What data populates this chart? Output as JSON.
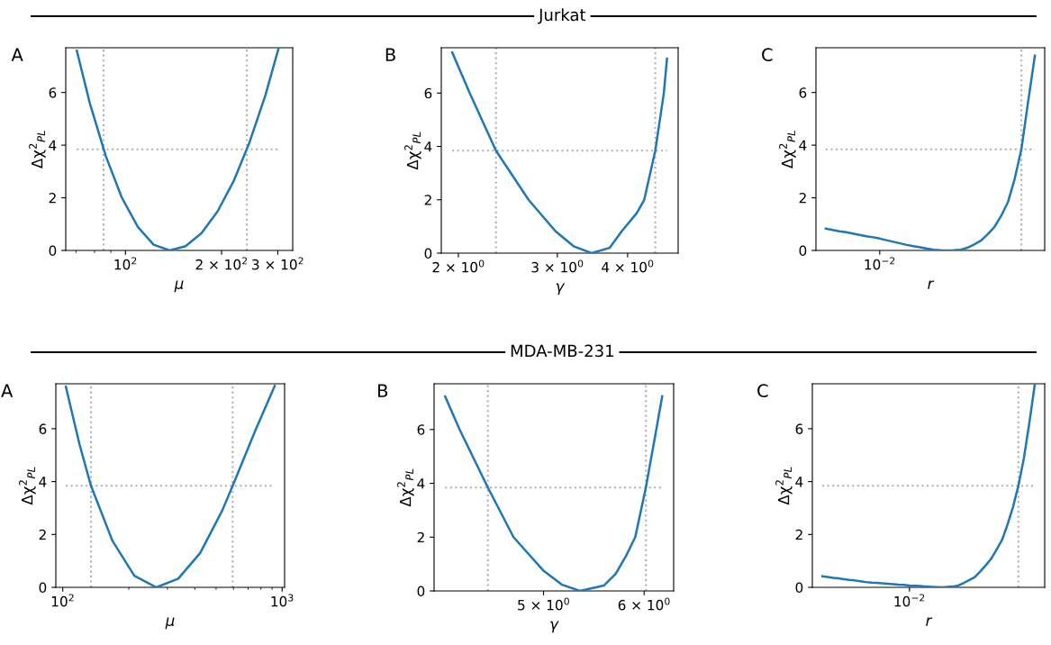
{
  "chart_data": [
    {
      "type": "line",
      "title": "A",
      "xlabel": "μ",
      "ylabel": "Δχ$^{2}$$_{PL}$",
      "log": "x",
      "color": "#1f77b4",
      "xlim": [
        65,
        334
      ],
      "ylim": [
        0,
        7.7
      ],
      "yticks": [
        0,
        2,
        4,
        6
      ],
      "xticks": [
        {
          "value": 70,
          "label": null
        },
        {
          "value": 80,
          "label": null
        },
        {
          "value": 90,
          "label": null
        },
        {
          "value": 100,
          "label": "10$^{2}$"
        },
        {
          "value": 200,
          "label": "2 × 10$^{2}$"
        },
        {
          "value": 300,
          "label": "3 × 10$^{2}$"
        }
      ],
      "x": [
        70.4,
        77.3,
        86.8,
        97.3,
        109.2,
        122.5,
        137.5,
        154.3,
        173.1,
        194.2,
        217.9,
        244.5,
        274.4,
        302
      ],
      "values": [
        7.59,
        5.6,
        3.58,
        2.02,
        0.9,
        0.22,
        0,
        0.16,
        0.66,
        1.48,
        2.62,
        4.1,
        5.9,
        7.7
      ],
      "ref_lines": [
        {
          "axis": "y",
          "value": 3.84,
          "color": "#b0b0b0",
          "line_style": "dotted"
        },
        {
          "axis": "x",
          "value": 85.4,
          "color": "#b0b0b0",
          "line_style": "dotted"
        },
        {
          "axis": "x",
          "value": 240,
          "color": "#b0b0b0",
          "line_style": "dotted"
        }
      ]
    },
    {
      "type": "line",
      "title": "B",
      "subtitle": "Jurkat",
      "xlabel": "γ",
      "ylabel": "Δχ$^{2}$$_{PL}$",
      "log": "x",
      "color": "#1f77b4",
      "xlim": [
        1.865,
        4.92
      ],
      "ylim": [
        0,
        7.7
      ],
      "yticks": [
        0,
        2,
        4,
        6
      ],
      "xticks": [
        {
          "value": 2,
          "label": "2 × 10$^{0}$"
        },
        {
          "value": 3,
          "label": "3 × 10$^{0}$"
        },
        {
          "value": 4,
          "label": "4 × 10$^{0}$"
        }
      ],
      "x": [
        1.95,
        2.095,
        2.333,
        2.666,
        2.978,
        3.206,
        3.45,
        3.718,
        3.904,
        4.152,
        4.282,
        4.48,
        4.64,
        4.7
      ],
      "values": [
        7.53,
        6.0,
        3.84,
        2.0,
        0.82,
        0.26,
        0,
        0.2,
        0.82,
        1.5,
        2.0,
        3.84,
        6.0,
        7.29
      ],
      "ref_lines": [
        {
          "axis": "y",
          "value": 3.84,
          "color": "#b0b0b0",
          "line_style": "dotted"
        },
        {
          "axis": "x",
          "value": 2.333,
          "color": "#b0b0b0",
          "line_style": "dotted"
        },
        {
          "axis": "x",
          "value": 4.48,
          "color": "#b0b0b0",
          "line_style": "dotted"
        }
      ]
    },
    {
      "type": "line",
      "title": "C",
      "xlabel": "r",
      "ylabel": "Δχ$^{2}$$_{PL}$",
      "color": "#1f77b4",
      "ylim": [
        0,
        7.7
      ],
      "yticks": [
        0,
        2,
        4,
        6
      ],
      "categories": [
        null,
        null,
        null,
        null,
        null,
        null,
        null,
        null,
        "10$^{−2}$",
        null,
        null,
        null,
        null,
        null,
        null,
        null,
        null,
        null,
        null,
        null,
        null,
        null,
        null,
        null,
        null,
        null,
        null,
        null,
        null,
        null,
        null,
        null
      ],
      "values": [
        0.83,
        0.78,
        0.73,
        0.69,
        0.64,
        0.59,
        0.54,
        0.5,
        0.45,
        0.39,
        0.33,
        0.27,
        0.21,
        0.16,
        0.12,
        0.07,
        0.03,
        0.01,
        0,
        0.01,
        0.03,
        0.1,
        0.23,
        0.37,
        0.61,
        0.89,
        1.31,
        1.83,
        2.71,
        3.84,
        5.65,
        7.4
      ],
      "ref_lines": [
        {
          "axis": "y",
          "value": 3.84,
          "color": "#b0b0b0",
          "line_style": "dotted"
        }
      ]
    },
    {
      "type": "line",
      "title": "A",
      "xlabel": "μ",
      "ylabel": "Δχ$^{2}$$_{PL}$",
      "log": "x",
      "color": "#1f77b4",
      "xlim": [
        93,
        1026
      ],
      "ylim": [
        0,
        7.7
      ],
      "yticks": [
        0,
        2,
        4,
        6
      ],
      "xticks": [
        {
          "value": 100,
          "label": "10$^{2}$"
        },
        {
          "value": 200,
          "label": null
        },
        {
          "value": 300,
          "label": null
        },
        {
          "value": 400,
          "label": null
        },
        {
          "value": 500,
          "label": null
        },
        {
          "value": 600,
          "label": null
        },
        {
          "value": 700,
          "label": null
        },
        {
          "value": 800,
          "label": null
        },
        {
          "value": 900,
          "label": null
        },
        {
          "value": 1000,
          "label": "10$^{3}$"
        }
      ],
      "x": [
        103.3,
        119.3,
        134.5,
        168.5,
        212,
        267,
        336,
        423,
        533,
        595,
        752,
        925
      ],
      "values": [
        7.59,
        5.4,
        3.84,
        1.76,
        0.44,
        0,
        0.33,
        1.3,
        2.9,
        3.84,
        5.9,
        7.62
      ],
      "ref_lines": [
        {
          "axis": "y",
          "value": 3.84,
          "color": "#b0b0b0",
          "line_style": "dotted"
        },
        {
          "axis": "x",
          "value": 134.5,
          "color": "#b0b0b0",
          "line_style": "dotted"
        },
        {
          "axis": "x",
          "value": 595,
          "color": "#b0b0b0",
          "line_style": "dotted"
        }
      ]
    },
    {
      "type": "line",
      "title": "B",
      "subtitle": "MDA-MB-231",
      "xlabel": "γ",
      "ylabel": "Δχ$^{2}$$_{PL}$",
      "log": "x",
      "color": "#1f77b4",
      "xlim": [
        4.1,
        6.33
      ],
      "ylim": [
        0,
        7.7
      ],
      "yticks": [
        0,
        2,
        4,
        6
      ],
      "xticks": [
        {
          "value": 5,
          "label": "5 × 10$^{0}$"
        },
        {
          "value": 6,
          "label": "6 × 10$^{0}$"
        }
      ],
      "x": [
        4.183,
        4.294,
        4.52,
        4.735,
        5.0,
        5.166,
        5.34,
        5.577,
        5.698,
        5.808,
        5.904,
        6.019,
        6.134,
        6.2
      ],
      "values": [
        7.23,
        6.0,
        3.84,
        2.0,
        0.75,
        0.24,
        0,
        0.2,
        0.63,
        1.31,
        2.0,
        3.84,
        6.0,
        7.23
      ],
      "ref_lines": [
        {
          "axis": "y",
          "value": 3.84,
          "color": "#b0b0b0",
          "line_style": "dotted"
        },
        {
          "axis": "x",
          "value": 4.52,
          "color": "#b0b0b0",
          "line_style": "dotted"
        },
        {
          "axis": "x",
          "value": 6.02,
          "color": "#b0b0b0",
          "line_style": "dotted"
        }
      ]
    },
    {
      "type": "line",
      "title": "C",
      "xlabel": "r",
      "ylabel": "Δχ$^{2}$$_{PL}$",
      "color": "#1f77b4",
      "ylim": [
        0,
        7.7
      ],
      "yticks": [
        0,
        2,
        4,
        6
      ],
      "categories": [
        null,
        null,
        null,
        null,
        null,
        null,
        null,
        null,
        null,
        null,
        null,
        null,
        null,
        null,
        null,
        null,
        "10$^{−2}$",
        null,
        null,
        null,
        null,
        null,
        null,
        null,
        null,
        null,
        null,
        null,
        null,
        null,
        null,
        null,
        null,
        null,
        null,
        null,
        null,
        null,
        null,
        null
      ],
      "values": [
        0.42,
        0.39,
        0.36,
        0.34,
        0.31,
        0.28,
        0.26,
        0.23,
        0.2,
        0.18,
        0.17,
        0.15,
        0.14,
        0.12,
        0.1,
        0.09,
        0.07,
        0.06,
        0.05,
        0.03,
        0.02,
        0.01,
        0,
        0.02,
        0.03,
        0.07,
        0.17,
        0.28,
        0.39,
        0.6,
        0.83,
        1.08,
        1.43,
        1.79,
        2.37,
        3.03,
        3.84,
        4.87,
        6.2,
        7.65
      ],
      "ref_lines": [
        {
          "axis": "y",
          "value": 3.84,
          "color": "#b0b0b0",
          "line_style": "dotted"
        }
      ]
    }
  ]
}
